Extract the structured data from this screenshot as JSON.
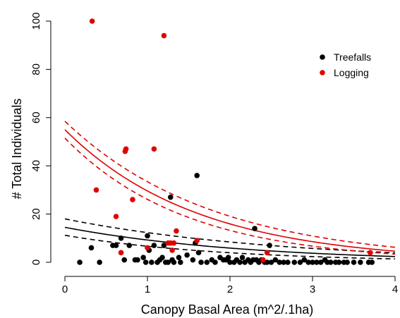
{
  "chart_data": {
    "type": "scatter",
    "title": "",
    "xlabel": "Canopy Basal Area (m^2/.1ha)",
    "ylabel": "# Total Individuals",
    "xlim": [
      0,
      4
    ],
    "ylim": [
      0,
      100
    ],
    "x_ticks": [
      0,
      1,
      2,
      3,
      4
    ],
    "y_ticks": [
      0,
      20,
      40,
      60,
      80,
      100
    ],
    "x_tick_labels": [
      "0",
      "1",
      "2",
      "3",
      "4"
    ],
    "y_tick_labels": [
      "0",
      "20",
      "40",
      "60",
      "80",
      "100"
    ],
    "grid": false,
    "legend_position": "top-right",
    "series": [
      {
        "name": "Treefalls",
        "color": "#000000",
        "points": [
          [
            0.18,
            0
          ],
          [
            0.32,
            6
          ],
          [
            0.42,
            0
          ],
          [
            0.58,
            7
          ],
          [
            0.62,
            7
          ],
          [
            0.68,
            10
          ],
          [
            0.72,
            1
          ],
          [
            0.78,
            7
          ],
          [
            0.85,
            1
          ],
          [
            0.88,
            1
          ],
          [
            0.95,
            2
          ],
          [
            0.98,
            0
          ],
          [
            1.0,
            11
          ],
          [
            1.02,
            5
          ],
          [
            1.05,
            0
          ],
          [
            1.08,
            7
          ],
          [
            1.12,
            0
          ],
          [
            1.15,
            1
          ],
          [
            1.18,
            2
          ],
          [
            1.2,
            7
          ],
          [
            1.22,
            0
          ],
          [
            1.25,
            0
          ],
          [
            1.28,
            27
          ],
          [
            1.3,
            1
          ],
          [
            1.32,
            0
          ],
          [
            1.38,
            2
          ],
          [
            1.4,
            0
          ],
          [
            1.48,
            3
          ],
          [
            1.55,
            1
          ],
          [
            1.58,
            8
          ],
          [
            1.6,
            36
          ],
          [
            1.62,
            4
          ],
          [
            1.65,
            0
          ],
          [
            1.72,
            0
          ],
          [
            1.78,
            1
          ],
          [
            1.82,
            0
          ],
          [
            1.88,
            2
          ],
          [
            1.92,
            1
          ],
          [
            1.95,
            1
          ],
          [
            1.98,
            2
          ],
          [
            2.0,
            0
          ],
          [
            2.05,
            0
          ],
          [
            2.08,
            1
          ],
          [
            2.12,
            0
          ],
          [
            2.15,
            2
          ],
          [
            2.18,
            0
          ],
          [
            2.22,
            1
          ],
          [
            2.25,
            0
          ],
          [
            2.28,
            1
          ],
          [
            2.3,
            14
          ],
          [
            2.32,
            1
          ],
          [
            2.35,
            0
          ],
          [
            2.38,
            1
          ],
          [
            2.42,
            0
          ],
          [
            2.45,
            0
          ],
          [
            2.48,
            7
          ],
          [
            2.5,
            0
          ],
          [
            2.55,
            1
          ],
          [
            2.6,
            0
          ],
          [
            2.65,
            0
          ],
          [
            2.7,
            0
          ],
          [
            2.78,
            0
          ],
          [
            2.85,
            0
          ],
          [
            2.9,
            1
          ],
          [
            2.95,
            0
          ],
          [
            3.0,
            0
          ],
          [
            3.05,
            0
          ],
          [
            3.1,
            0
          ],
          [
            3.15,
            1
          ],
          [
            3.18,
            0
          ],
          [
            3.22,
            0
          ],
          [
            3.28,
            0
          ],
          [
            3.32,
            0
          ],
          [
            3.38,
            0
          ],
          [
            3.42,
            0
          ],
          [
            3.5,
            0
          ],
          [
            3.58,
            0
          ],
          [
            3.68,
            0
          ],
          [
            3.72,
            0
          ]
        ]
      },
      {
        "name": "Logging",
        "color": "#e00000",
        "points": [
          [
            0.33,
            100
          ],
          [
            0.38,
            30
          ],
          [
            0.62,
            19
          ],
          [
            0.68,
            4
          ],
          [
            0.73,
            46
          ],
          [
            0.74,
            47
          ],
          [
            0.82,
            26
          ],
          [
            1.0,
            6
          ],
          [
            1.08,
            47
          ],
          [
            1.2,
            94
          ],
          [
            1.25,
            8
          ],
          [
            1.28,
            8
          ],
          [
            1.32,
            8
          ],
          [
            1.35,
            13
          ],
          [
            1.3,
            5
          ],
          [
            1.6,
            9
          ],
          [
            2.45,
            4
          ],
          [
            2.4,
            1
          ],
          [
            3.7,
            4
          ]
        ]
      }
    ],
    "fit_curves": [
      {
        "series": "Treefalls",
        "color": "#000000",
        "fit": {
          "a": 14.5,
          "b": 0.45
        },
        "ci_low": {
          "a": 11.2,
          "b": 0.52
        },
        "ci_high": {
          "a": 18.0,
          "b": 0.38
        }
      },
      {
        "series": "Logging",
        "color": "#e00000",
        "fit": {
          "a": 55.0,
          "b": 0.62
        },
        "ci_low": {
          "a": 51.5,
          "b": 0.68
        },
        "ci_high": {
          "a": 58.5,
          "b": 0.56
        }
      }
    ]
  },
  "legend": {
    "items": [
      {
        "label": "Treefalls",
        "color": "#000000"
      },
      {
        "label": "Logging",
        "color": "#e00000"
      }
    ]
  }
}
